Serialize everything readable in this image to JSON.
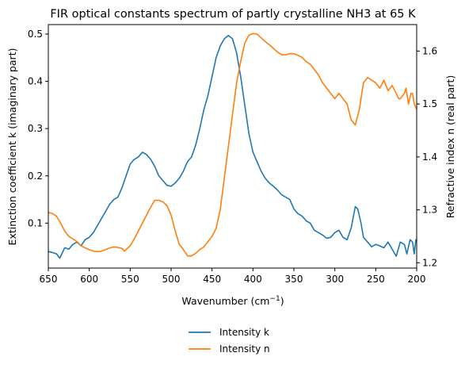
{
  "chart_data": {
    "type": "line",
    "title": "FIR optical constants spectrum of partly crystalline NH3 at 65 K",
    "xlabel": "Wavenumber (cm",
    "xlabel_sup": "−1",
    "xlabel_tail": ")",
    "ylabel_left": "Extinction coefficient k (imaginary part)",
    "ylabel_right": "Refractive index n (real part)",
    "xlim": [
      650,
      200
    ],
    "x_inverted": true,
    "ylim_left": [
      0.005,
      0.52
    ],
    "ylim_right": [
      1.19,
      1.65
    ],
    "x_ticks": [
      650,
      600,
      550,
      500,
      450,
      400,
      350,
      300,
      250,
      200
    ],
    "y_ticks_left": [
      0.1,
      0.2,
      0.3,
      0.4,
      0.5
    ],
    "y_ticks_right": [
      1.2,
      1.3,
      1.4,
      1.5,
      1.6
    ],
    "grid": false,
    "legend_position": "bottom-center-outside",
    "colors": {
      "k": "#1f77b4",
      "n": "#ff7f0e"
    },
    "series": [
      {
        "name": "Intensity k",
        "axis": "left",
        "x": [
          650,
          645,
          640,
          636,
          630,
          625,
          620,
          615,
          610,
          605,
          600,
          595,
          590,
          585,
          580,
          575,
          570,
          565,
          560,
          555,
          550,
          545,
          540,
          535,
          530,
          525,
          520,
          515,
          510,
          505,
          500,
          495,
          490,
          485,
          480,
          475,
          470,
          465,
          460,
          455,
          450,
          445,
          440,
          435,
          430,
          425,
          420,
          415,
          410,
          405,
          400,
          395,
          390,
          385,
          380,
          375,
          370,
          365,
          360,
          355,
          350,
          345,
          340,
          335,
          330,
          325,
          320,
          315,
          310,
          305,
          300,
          295,
          290,
          285,
          280,
          275,
          272,
          268,
          265,
          260,
          255,
          250,
          245,
          240,
          235,
          230,
          225,
          220,
          215,
          212,
          208,
          205,
          203,
          201,
          200
        ],
        "values": [
          0.04,
          0.038,
          0.035,
          0.026,
          0.048,
          0.045,
          0.055,
          0.06,
          0.052,
          0.065,
          0.07,
          0.08,
          0.095,
          0.11,
          0.125,
          0.14,
          0.15,
          0.155,
          0.175,
          0.2,
          0.225,
          0.235,
          0.24,
          0.25,
          0.245,
          0.235,
          0.22,
          0.2,
          0.19,
          0.18,
          0.178,
          0.185,
          0.195,
          0.21,
          0.23,
          0.24,
          0.265,
          0.3,
          0.34,
          0.37,
          0.41,
          0.45,
          0.475,
          0.49,
          0.497,
          0.49,
          0.46,
          0.41,
          0.35,
          0.29,
          0.25,
          0.23,
          0.21,
          0.195,
          0.185,
          0.178,
          0.17,
          0.16,
          0.155,
          0.15,
          0.13,
          0.12,
          0.115,
          0.105,
          0.1,
          0.085,
          0.08,
          0.075,
          0.068,
          0.07,
          0.08,
          0.085,
          0.07,
          0.065,
          0.09,
          0.135,
          0.13,
          0.1,
          0.07,
          0.06,
          0.05,
          0.055,
          0.052,
          0.048,
          0.06,
          0.045,
          0.03,
          0.06,
          0.055,
          0.035,
          0.065,
          0.06,
          0.035,
          0.065,
          0.06
        ]
      },
      {
        "name": "Intensity n",
        "axis": "right",
        "x": [
          650,
          645,
          640,
          635,
          630,
          625,
          620,
          615,
          610,
          605,
          600,
          595,
          590,
          585,
          580,
          575,
          570,
          565,
          560,
          557,
          555,
          550,
          545,
          540,
          535,
          530,
          525,
          520,
          515,
          510,
          505,
          500,
          495,
          490,
          485,
          480,
          475,
          470,
          465,
          460,
          455,
          450,
          445,
          440,
          435,
          430,
          425,
          420,
          415,
          410,
          405,
          400,
          395,
          390,
          385,
          380,
          375,
          370,
          365,
          360,
          355,
          350,
          345,
          340,
          335,
          330,
          325,
          320,
          315,
          310,
          305,
          300,
          295,
          290,
          285,
          280,
          275,
          270,
          265,
          260,
          255,
          250,
          245,
          240,
          235,
          230,
          225,
          222,
          220,
          215,
          213,
          210,
          207,
          205,
          203,
          200
        ],
        "values": [
          1.295,
          1.293,
          1.288,
          1.275,
          1.26,
          1.25,
          1.245,
          1.24,
          1.232,
          1.228,
          1.225,
          1.222,
          1.221,
          1.222,
          1.225,
          1.228,
          1.23,
          1.229,
          1.227,
          1.222,
          1.225,
          1.232,
          1.245,
          1.26,
          1.275,
          1.29,
          1.305,
          1.318,
          1.318,
          1.315,
          1.308,
          1.29,
          1.26,
          1.235,
          1.225,
          1.213,
          1.213,
          1.218,
          1.225,
          1.23,
          1.24,
          1.25,
          1.265,
          1.3,
          1.36,
          1.42,
          1.48,
          1.54,
          1.58,
          1.615,
          1.63,
          1.633,
          1.632,
          1.625,
          1.618,
          1.612,
          1.605,
          1.598,
          1.593,
          1.593,
          1.595,
          1.595,
          1.592,
          1.588,
          1.58,
          1.575,
          1.565,
          1.555,
          1.54,
          1.53,
          1.52,
          1.51,
          1.52,
          1.51,
          1.5,
          1.47,
          1.46,
          1.49,
          1.54,
          1.55,
          1.545,
          1.54,
          1.53,
          1.545,
          1.525,
          1.535,
          1.52,
          1.51,
          1.51,
          1.52,
          1.53,
          1.5,
          1.52,
          1.52,
          1.5,
          1.49
        ]
      }
    ]
  }
}
